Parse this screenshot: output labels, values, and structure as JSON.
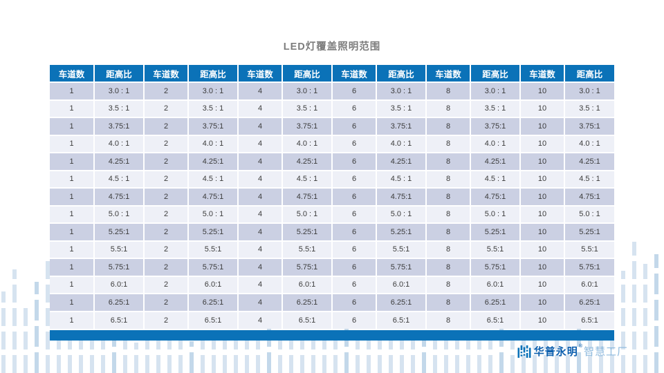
{
  "title": "LED灯覆盖照明范围",
  "colors": {
    "header_blue": "#0b72b8",
    "row_dark": "#cbd0e3",
    "row_light": "#eef0f7",
    "bar_light": "#d6e3f0",
    "bar_medium": "#c3d8ea",
    "title_gray": "#7d7d7d",
    "brand_dark": "#0c5fae",
    "brand_light": "#8db9dd"
  },
  "table": {
    "header": [
      "车道数",
      "距高比",
      "车道数",
      "距高比",
      "车道数",
      "距高比",
      "车道数",
      "距高比",
      "车道数",
      "距高比",
      "车道数",
      "距高比"
    ],
    "lane_counts": [
      "1",
      "2",
      "4",
      "6",
      "8",
      "10"
    ],
    "ratios": [
      "3.0 : 1",
      "3.5 : 1",
      "3.75:1",
      "4.0 : 1",
      "4.25:1",
      "4.5 : 1",
      "4.75:1",
      "5.0 : 1",
      "5.25:1",
      "5.5:1",
      "5.75:1",
      "6.0:1",
      "6.25:1",
      "6.5:1"
    ],
    "rows": [
      [
        "1",
        "3.0 : 1",
        "2",
        "3.0 : 1",
        "4",
        "3.0 : 1",
        "6",
        "3.0 : 1",
        "8",
        "3.0 : 1",
        "10",
        "3.0 : 1"
      ],
      [
        "1",
        "3.5 : 1",
        "2",
        "3.5 : 1",
        "4",
        "3.5 : 1",
        "6",
        "3.5 : 1",
        "8",
        "3.5 : 1",
        "10",
        "3.5 : 1"
      ],
      [
        "1",
        "3.75:1",
        "2",
        "3.75:1",
        "4",
        "3.75:1",
        "6",
        "3.75:1",
        "8",
        "3.75:1",
        "10",
        "3.75:1"
      ],
      [
        "1",
        "4.0 : 1",
        "2",
        "4.0 : 1",
        "4",
        "4.0 : 1",
        "6",
        "4.0 : 1",
        "8",
        "4.0 : 1",
        "10",
        "4.0 : 1"
      ],
      [
        "1",
        "4.25:1",
        "2",
        "4.25:1",
        "4",
        "4.25:1",
        "6",
        "4.25:1",
        "8",
        "4.25:1",
        "10",
        "4.25:1"
      ],
      [
        "1",
        "4.5 : 1",
        "2",
        "4.5 : 1",
        "4",
        "4.5 : 1",
        "6",
        "4.5 : 1",
        "8",
        "4.5 : 1",
        "10",
        "4.5 : 1"
      ],
      [
        "1",
        "4.75:1",
        "2",
        "4.75:1",
        "4",
        "4.75:1",
        "6",
        "4.75:1",
        "8",
        "4.75:1",
        "10",
        "4.75:1"
      ],
      [
        "1",
        "5.0 : 1",
        "2",
        "5.0 : 1",
        "4",
        "5.0 : 1",
        "6",
        "5.0 : 1",
        "8",
        "5.0 : 1",
        "10",
        "5.0 : 1"
      ],
      [
        "1",
        "5.25:1",
        "2",
        "5.25:1",
        "4",
        "5.25:1",
        "6",
        "5.25:1",
        "8",
        "5.25:1",
        "10",
        "5.25:1"
      ],
      [
        "1",
        "5.5:1",
        "2",
        "5.5:1",
        "4",
        "5.5:1",
        "6",
        "5.5:1",
        "8",
        "5.5:1",
        "10",
        "5.5:1"
      ],
      [
        "1",
        "5.75:1",
        "2",
        "5.75:1",
        "4",
        "5.75:1",
        "6",
        "5.75:1",
        "8",
        "5.75:1",
        "10",
        "5.75:1"
      ],
      [
        "1",
        "6.0:1",
        "2",
        "6.0:1",
        "4",
        "6.0:1",
        "6",
        "6.0:1",
        "8",
        "6.0:1",
        "10",
        "6.0:1"
      ],
      [
        "1",
        "6.25:1",
        "2",
        "6.25:1",
        "4",
        "6.25:1",
        "6",
        "6.25:1",
        "8",
        "6.25:1",
        "10",
        "6.25:1"
      ],
      [
        "1",
        "6.5:1",
        "2",
        "6.5:1",
        "4",
        "6.5:1",
        "6",
        "6.5:1",
        "8",
        "6.5:1",
        "10",
        "6.5:1"
      ]
    ]
  },
  "logo": {
    "icon": "hpwinner-logo",
    "brand": "华普永明",
    "reg": "®",
    "suffix": "智慧工厂"
  }
}
